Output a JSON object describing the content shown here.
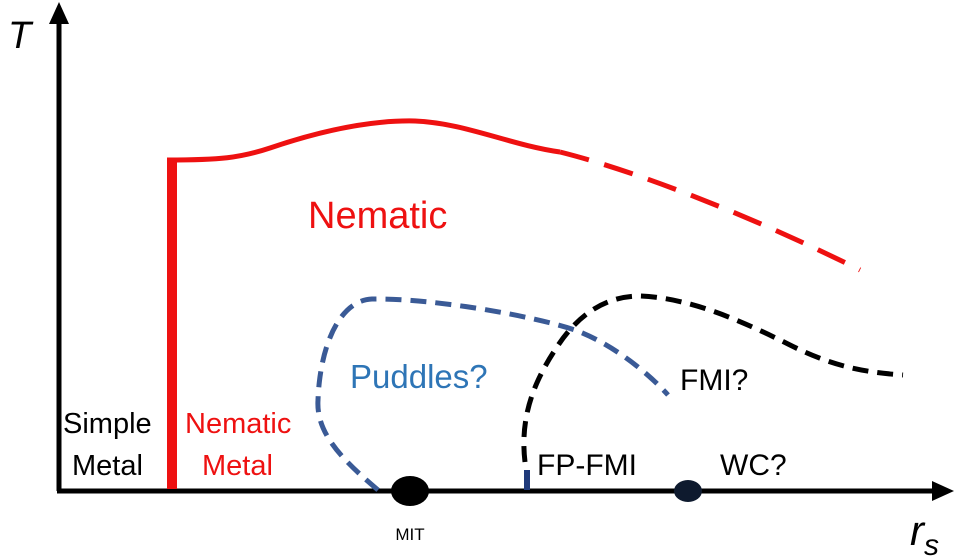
{
  "axes": {
    "y_label": "T",
    "x_label_main": "r",
    "x_label_sub": "s"
  },
  "regions": {
    "simple_metal_line1": "Simple",
    "simple_metal_line2": "Metal",
    "nematic_metal_line1": "Nematic",
    "nematic_metal_line2": "Metal",
    "nematic": "Nematic",
    "puddles": "Puddles?",
    "fmi": "FMI?",
    "fp_fmi": "FP-FMI",
    "wc": "WC?"
  },
  "points": {
    "mit": "MIT"
  },
  "colors": {
    "nematic": "#ee1111",
    "puddles": "#3a5a96",
    "puddles_text": "#2e75b6",
    "ferro": "#000000",
    "fp_fmi_line": "#1f3a7a",
    "axis": "#000000"
  }
}
